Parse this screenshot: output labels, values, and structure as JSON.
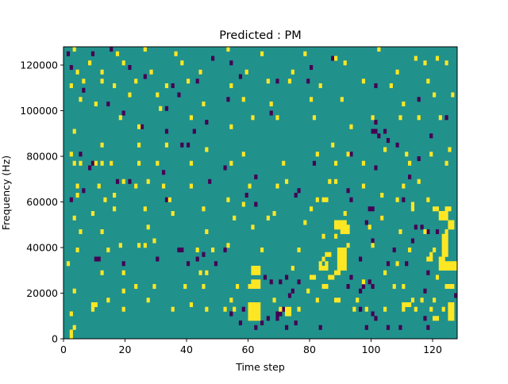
{
  "chart_data": {
    "type": "heatmap",
    "title": "Predicted : PM",
    "xlabel": "Time step",
    "ylabel": "Frequency (Hz)",
    "xlim": [
      0,
      128
    ],
    "ylim": [
      0,
      128000
    ],
    "x_ticks": [
      0,
      20,
      40,
      60,
      80,
      100,
      120
    ],
    "y_ticks": [
      0,
      20000,
      40000,
      60000,
      80000,
      100000,
      120000
    ],
    "y_tick_labels": [
      "0",
      "20000",
      "40000",
      "60000",
      "80000",
      "100000",
      "120000"
    ],
    "grid": false,
    "legend": "none",
    "n_rows": 64,
    "n_cols": 128,
    "colormap": "viridis",
    "colors": {
      "background": "#21918c",
      "high": "#fde725",
      "low": "#440154"
    },
    "high_cells": [
      [
        2,
        0
      ],
      [
        2,
        1
      ],
      [
        3,
        2
      ],
      [
        2,
        5
      ],
      [
        9,
        6
      ],
      [
        19,
        6
      ],
      [
        35,
        6
      ],
      [
        46,
        6
      ],
      [
        52,
        6
      ],
      [
        94,
        6
      ],
      [
        55,
        6
      ],
      [
        70,
        6
      ],
      [
        76,
        6
      ],
      [
        98,
        6
      ],
      [
        104,
        6
      ],
      [
        110,
        6
      ],
      [
        114,
        6
      ],
      [
        119,
        6
      ],
      [
        123,
        6
      ],
      [
        60,
        4
      ],
      [
        61,
        4
      ],
      [
        62,
        4
      ],
      [
        63,
        4
      ],
      [
        60,
        5
      ],
      [
        61,
        5
      ],
      [
        62,
        5
      ],
      [
        63,
        5
      ],
      [
        60,
        6
      ],
      [
        61,
        6
      ],
      [
        62,
        6
      ],
      [
        63,
        6
      ],
      [
        60,
        7
      ],
      [
        61,
        7
      ],
      [
        62,
        7
      ],
      [
        63,
        7
      ],
      [
        72,
        5
      ],
      [
        73,
        5
      ],
      [
        72,
        6
      ],
      [
        73,
        6
      ],
      [
        110,
        7
      ],
      [
        111,
        7
      ],
      [
        112,
        7
      ],
      [
        120,
        4
      ],
      [
        121,
        4
      ],
      [
        125,
        4
      ],
      [
        126,
        4
      ],
      [
        125,
        5
      ],
      [
        126,
        5
      ],
      [
        125,
        6
      ],
      [
        126,
        6
      ],
      [
        125,
        7
      ],
      [
        126,
        7
      ],
      [
        9,
        7
      ],
      [
        10,
        7
      ],
      [
        14,
        8
      ],
      [
        27,
        8
      ],
      [
        41,
        7
      ],
      [
        54,
        8
      ],
      [
        68,
        8
      ],
      [
        82,
        8
      ],
      [
        88,
        8
      ],
      [
        89,
        8
      ],
      [
        95,
        8
      ],
      [
        113,
        8
      ],
      [
        116,
        8
      ],
      [
        120,
        8
      ],
      [
        3,
        10
      ],
      [
        19,
        10
      ],
      [
        39,
        11
      ],
      [
        56,
        11
      ],
      [
        60,
        11
      ],
      [
        61,
        11
      ],
      [
        62,
        11
      ],
      [
        63,
        11
      ],
      [
        79,
        10
      ],
      [
        84,
        11
      ],
      [
        85,
        11
      ],
      [
        97,
        12
      ],
      [
        107,
        11
      ],
      [
        110,
        11
      ],
      [
        124,
        11
      ],
      [
        125,
        11
      ],
      [
        126,
        11
      ],
      [
        23,
        11
      ],
      [
        29,
        11
      ],
      [
        45,
        11
      ],
      [
        61,
        12
      ],
      [
        62,
        12
      ],
      [
        63,
        12
      ],
      [
        80,
        13
      ],
      [
        81,
        13
      ],
      [
        86,
        13
      ],
      [
        87,
        13
      ],
      [
        88,
        14
      ],
      [
        89,
        14
      ],
      [
        104,
        14
      ],
      [
        121,
        13
      ],
      [
        1,
        16
      ],
      [
        12,
        14
      ],
      [
        19,
        14
      ],
      [
        44,
        14
      ],
      [
        46,
        14
      ],
      [
        61,
        14
      ],
      [
        62,
        14
      ],
      [
        63,
        14
      ],
      [
        61,
        15
      ],
      [
        62,
        15
      ],
      [
        63,
        15
      ],
      [
        74,
        15
      ],
      [
        83,
        15
      ],
      [
        84,
        15
      ],
      [
        85,
        15
      ],
      [
        89,
        15
      ],
      [
        90,
        15
      ],
      [
        91,
        15
      ],
      [
        89,
        16
      ],
      [
        90,
        16
      ],
      [
        91,
        16
      ],
      [
        89,
        17
      ],
      [
        90,
        17
      ],
      [
        91,
        17
      ],
      [
        89,
        18
      ],
      [
        90,
        18
      ],
      [
        91,
        18
      ],
      [
        89,
        19
      ],
      [
        90,
        19
      ],
      [
        91,
        19
      ],
      [
        122,
        15
      ],
      [
        123,
        15
      ],
      [
        124,
        15
      ],
      [
        125,
        15
      ],
      [
        126,
        15
      ],
      [
        127,
        15
      ],
      [
        122,
        16
      ],
      [
        123,
        16
      ],
      [
        124,
        16
      ],
      [
        125,
        16
      ],
      [
        126,
        16
      ],
      [
        127,
        16
      ],
      [
        122,
        17
      ],
      [
        123,
        17
      ],
      [
        83,
        16
      ],
      [
        84,
        17
      ],
      [
        85,
        16
      ],
      [
        85,
        18
      ],
      [
        86,
        18
      ],
      [
        108,
        16
      ],
      [
        118,
        17
      ],
      [
        119,
        17
      ],
      [
        119,
        18
      ],
      [
        4,
        19
      ],
      [
        14,
        19
      ],
      [
        18,
        20
      ],
      [
        24,
        20
      ],
      [
        26,
        20
      ],
      [
        29,
        21
      ],
      [
        43,
        19
      ],
      [
        48,
        19
      ],
      [
        53,
        20
      ],
      [
        64,
        19
      ],
      [
        76,
        19
      ],
      [
        92,
        20
      ],
      [
        100,
        20
      ],
      [
        112,
        19
      ],
      [
        120,
        19
      ],
      [
        123,
        18
      ],
      [
        124,
        18
      ],
      [
        123,
        19
      ],
      [
        124,
        19
      ],
      [
        123,
        20
      ],
      [
        124,
        20
      ],
      [
        123,
        21
      ],
      [
        124,
        21
      ],
      [
        123,
        22
      ],
      [
        124,
        22
      ],
      [
        84,
        22
      ],
      [
        88,
        22
      ],
      [
        90,
        23
      ],
      [
        91,
        23
      ],
      [
        92,
        23
      ],
      [
        88,
        24
      ],
      [
        89,
        24
      ],
      [
        90,
        24
      ],
      [
        91,
        24
      ],
      [
        92,
        24
      ],
      [
        88,
        25
      ],
      [
        89,
        25
      ],
      [
        90,
        25
      ],
      [
        91,
        25
      ],
      [
        5,
        23
      ],
      [
        12,
        23
      ],
      [
        27,
        24
      ],
      [
        46,
        23
      ],
      [
        61,
        24
      ],
      [
        78,
        25
      ],
      [
        99,
        24
      ],
      [
        109,
        23
      ],
      [
        117,
        23
      ],
      [
        124,
        23
      ],
      [
        125,
        24
      ],
      [
        126,
        24
      ],
      [
        125,
        25
      ],
      [
        126,
        25
      ],
      [
        3,
        26
      ],
      [
        9,
        27
      ],
      [
        16,
        28
      ],
      [
        26,
        28
      ],
      [
        35,
        27
      ],
      [
        45,
        28
      ],
      [
        55,
        26
      ],
      [
        66,
        26
      ],
      [
        68,
        27
      ],
      [
        80,
        28
      ],
      [
        91,
        27
      ],
      [
        103,
        26
      ],
      [
        113,
        28
      ],
      [
        122,
        26
      ],
      [
        123,
        26
      ],
      [
        124,
        26
      ],
      [
        122,
        27
      ],
      [
        123,
        27
      ],
      [
        124,
        27
      ],
      [
        120,
        28
      ],
      [
        121,
        28
      ],
      [
        124,
        28
      ],
      [
        125,
        28
      ],
      [
        4,
        31
      ],
      [
        13,
        30
      ],
      [
        16,
        31
      ],
      [
        34,
        30
      ],
      [
        53,
        30
      ],
      [
        58,
        29
      ],
      [
        82,
        30
      ],
      [
        84,
        30
      ],
      [
        85,
        30
      ],
      [
        103,
        31
      ],
      [
        108,
        30
      ],
      [
        113,
        29
      ],
      [
        118,
        30
      ],
      [
        4,
        33
      ],
      [
        11,
        33
      ],
      [
        19,
        34
      ],
      [
        23,
        33
      ],
      [
        27,
        34
      ],
      [
        32,
        33
      ],
      [
        41,
        33
      ],
      [
        60,
        33
      ],
      [
        69,
        33
      ],
      [
        72,
        34
      ],
      [
        86,
        34
      ],
      [
        88,
        34
      ],
      [
        97,
        33
      ],
      [
        110,
        33
      ],
      [
        115,
        34
      ],
      [
        3,
        38
      ],
      [
        5,
        38
      ],
      [
        10,
        38
      ],
      [
        12,
        38
      ],
      [
        15,
        38
      ],
      [
        24,
        38
      ],
      [
        30,
        38
      ],
      [
        41,
        38
      ],
      [
        54,
        38
      ],
      [
        71,
        38
      ],
      [
        88,
        38
      ],
      [
        97,
        38
      ],
      [
        112,
        38
      ],
      [
        124,
        38
      ],
      [
        2,
        40
      ],
      [
        12,
        42
      ],
      [
        24,
        42
      ],
      [
        33,
        42
      ],
      [
        46,
        41
      ],
      [
        58,
        40
      ],
      [
        82,
        40
      ],
      [
        87,
        42
      ],
      [
        92,
        40
      ],
      [
        104,
        41
      ],
      [
        111,
        40
      ],
      [
        119,
        40
      ],
      [
        125,
        41
      ],
      [
        3,
        45
      ],
      [
        18,
        48
      ],
      [
        24,
        46
      ],
      [
        31,
        50
      ],
      [
        41,
        48
      ],
      [
        54,
        46
      ],
      [
        61,
        48
      ],
      [
        69,
        48
      ],
      [
        81,
        48
      ],
      [
        93,
        46
      ],
      [
        100,
        48
      ],
      [
        109,
        48
      ],
      [
        115,
        48
      ],
      [
        122,
        48
      ],
      [
        5,
        52
      ],
      [
        10,
        51
      ],
      [
        21,
        53
      ],
      [
        30,
        53
      ],
      [
        45,
        51
      ],
      [
        58,
        52
      ],
      [
        67,
        51
      ],
      [
        80,
        52
      ],
      [
        90,
        52
      ],
      [
        110,
        51
      ],
      [
        120,
        53
      ],
      [
        126,
        53
      ],
      [
        2,
        55
      ],
      [
        6,
        56
      ],
      [
        12,
        56
      ],
      [
        16,
        55
      ],
      [
        23,
        56
      ],
      [
        33,
        55
      ],
      [
        40,
        56
      ],
      [
        54,
        55
      ],
      [
        66,
        56
      ],
      [
        73,
        56
      ],
      [
        83,
        55
      ],
      [
        97,
        56
      ],
      [
        106,
        55
      ],
      [
        118,
        56
      ],
      [
        4,
        58
      ],
      [
        8,
        60
      ],
      [
        12,
        58
      ],
      [
        19,
        60
      ],
      [
        28,
        58
      ],
      [
        38,
        60
      ],
      [
        44,
        58
      ],
      [
        59,
        58
      ],
      [
        74,
        58
      ],
      [
        91,
        60
      ],
      [
        108,
        58
      ],
      [
        117,
        60
      ],
      [
        124,
        60
      ],
      [
        3,
        63
      ],
      [
        17,
        62
      ],
      [
        26,
        63
      ],
      [
        36,
        62
      ],
      [
        53,
        63
      ],
      [
        64,
        62
      ],
      [
        78,
        62
      ],
      [
        88,
        61
      ],
      [
        102,
        63
      ],
      [
        114,
        61
      ],
      [
        121,
        61
      ]
    ],
    "low_cells": [
      [
        62,
        2
      ],
      [
        72,
        2
      ],
      [
        83,
        2
      ],
      [
        98,
        2
      ],
      [
        109,
        2
      ],
      [
        118,
        2
      ],
      [
        57,
        3
      ],
      [
        64,
        3
      ],
      [
        75,
        3
      ],
      [
        66,
        4
      ],
      [
        69,
        4
      ],
      [
        54,
        5
      ],
      [
        101,
        4
      ],
      [
        100,
        5
      ],
      [
        69,
        5
      ],
      [
        70,
        5
      ],
      [
        71,
        6
      ],
      [
        58,
        6
      ],
      [
        96,
        6
      ],
      [
        117,
        4
      ],
      [
        105,
        2
      ],
      [
        96,
        10
      ],
      [
        97,
        11
      ],
      [
        99,
        12
      ],
      [
        100,
        11
      ],
      [
        117,
        10
      ],
      [
        127,
        9
      ],
      [
        121,
        13
      ],
      [
        118,
        14
      ],
      [
        10,
        17
      ],
      [
        11,
        17
      ],
      [
        19,
        16
      ],
      [
        30,
        17
      ],
      [
        45,
        18
      ],
      [
        96,
        17
      ],
      [
        105,
        16
      ],
      [
        111,
        16
      ],
      [
        100,
        21
      ],
      [
        107,
        19
      ],
      [
        113,
        21
      ],
      [
        118,
        23
      ],
      [
        121,
        23
      ],
      [
        114,
        24
      ],
      [
        116,
        24
      ],
      [
        98,
        25
      ],
      [
        103,
        26
      ],
      [
        99,
        28
      ],
      [
        100,
        28
      ],
      [
        2,
        30
      ],
      [
        6,
        32
      ],
      [
        17,
        34
      ],
      [
        21,
        34
      ],
      [
        33,
        30
      ],
      [
        47,
        34
      ],
      [
        59,
        31
      ],
      [
        62,
        29
      ],
      [
        75,
        31
      ],
      [
        76,
        32
      ],
      [
        92,
        32
      ],
      [
        93,
        30
      ],
      [
        110,
        30
      ],
      [
        37,
        19
      ],
      [
        38,
        19
      ],
      [
        40,
        16
      ],
      [
        43,
        17
      ],
      [
        49,
        16
      ],
      [
        52,
        19
      ],
      [
        65,
        13
      ],
      [
        67,
        12
      ],
      [
        70,
        12
      ],
      [
        72,
        13
      ],
      [
        73,
        9
      ],
      [
        74,
        10
      ],
      [
        76,
        12
      ],
      [
        92,
        11
      ],
      [
        93,
        13
      ],
      [
        5,
        40
      ],
      [
        8,
        37
      ],
      [
        9,
        38
      ],
      [
        15,
        38
      ],
      [
        32,
        36
      ],
      [
        40,
        42
      ],
      [
        52,
        37
      ],
      [
        62,
        35
      ],
      [
        81,
        38
      ],
      [
        93,
        40
      ],
      [
        101,
        37
      ],
      [
        112,
        35
      ],
      [
        115,
        39
      ],
      [
        19,
        49
      ],
      [
        25,
        46
      ],
      [
        33,
        50
      ],
      [
        46,
        47
      ],
      [
        53,
        52
      ],
      [
        67,
        49
      ],
      [
        79,
        56
      ],
      [
        101,
        47
      ],
      [
        115,
        52
      ],
      [
        124,
        48
      ],
      [
        1,
        62
      ],
      [
        2,
        59
      ],
      [
        6,
        54
      ],
      [
        9,
        62
      ],
      [
        14,
        51
      ],
      [
        21,
        59
      ],
      [
        26,
        57
      ],
      [
        35,
        55
      ],
      [
        37,
        53
      ],
      [
        48,
        61
      ],
      [
        54,
        60
      ],
      [
        57,
        57
      ],
      [
        69,
        56
      ],
      [
        80,
        59
      ],
      [
        87,
        61
      ],
      [
        101,
        55
      ],
      [
        100,
        45
      ],
      [
        101,
        45
      ],
      [
        102,
        44
      ],
      [
        104,
        45
      ],
      [
        105,
        43
      ],
      [
        108,
        42
      ],
      [
        119,
        44
      ],
      [
        43,
        56
      ],
      [
        44,
        58
      ],
      [
        38,
        42
      ],
      [
        42,
        45
      ],
      [
        15,
        63
      ],
      [
        33,
        45
      ]
    ]
  }
}
